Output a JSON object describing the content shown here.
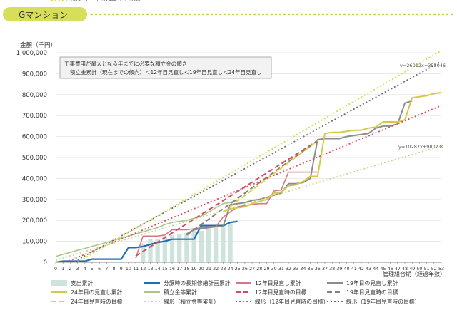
{
  "header": {
    "title": "Gマンション"
  },
  "chart_data": {
    "type": "line",
    "title": "Gマンション",
    "ylabel": "金額（千円）",
    "xlabel": "管理組合期（経過年数）",
    "ylim": [
      0,
      1000000
    ],
    "yticks": [
      0,
      100000,
      200000,
      300000,
      400000,
      500000,
      600000,
      700000,
      800000,
      900000,
      1000000
    ],
    "ytick_labels": [
      "0",
      "100,000",
      "200,000",
      "300,000",
      "400,000",
      "500,000",
      "600,000",
      "700,000",
      "800,000",
      "900,000",
      "1,000,000"
    ],
    "x": [
      0,
      1,
      2,
      3,
      4,
      5,
      6,
      7,
      8,
      9,
      10,
      11,
      12,
      13,
      14,
      15,
      16,
      17,
      18,
      19,
      20,
      21,
      22,
      23,
      24,
      25,
      26,
      27,
      28,
      29,
      30,
      31,
      32,
      33,
      34,
      35,
      36,
      37,
      38,
      39,
      40,
      41,
      42,
      43,
      44,
      45,
      46,
      47,
      48,
      49,
      50,
      51,
      52,
      53
    ],
    "xtick_labels": [
      "0",
      "1",
      "2",
      "3",
      "4",
      "5",
      "6",
      "7",
      "8",
      "9",
      "10",
      "11",
      "12",
      "13",
      "14",
      "15",
      "16",
      "17",
      "18",
      "19",
      "20",
      "21",
      "22",
      "23",
      "24",
      "25",
      "26",
      "27",
      "28",
      "29",
      "30",
      "31",
      "32",
      "33",
      "34",
      "35",
      "36",
      "37",
      "38",
      "39",
      "40",
      "41",
      "42",
      "43",
      "44",
      "45",
      "46",
      "47",
      "48",
      "49",
      "50",
      "51",
      "52",
      "53"
    ],
    "annotation_lines": [
      "工事費用が最大となる年までに必要な積立金の傾き",
      "積立金累計（現在までの傾向）＜12年目見直し＜19年目見直し＜24年目見直し"
    ],
    "equations": [
      {
        "text": "y=26012x+355046"
      },
      {
        "text": "y=10287x+9802.8"
      }
    ],
    "bars": {
      "name": "支出累計",
      "color": "#cde3dc",
      "x": [
        12,
        13,
        14,
        15,
        16,
        17,
        18,
        19,
        20,
        21,
        22,
        23,
        24
      ],
      "values": [
        90000,
        110000,
        110000,
        125000,
        130000,
        135000,
        140000,
        150000,
        150000,
        160000,
        170000,
        180000,
        185000
      ]
    },
    "series": [
      {
        "name": "分譲時の長期修繕計画累計",
        "color": "#1c6fb2",
        "dash": "none",
        "width": 2.2,
        "x": [
          0,
          1,
          2,
          3,
          4,
          5,
          6,
          7,
          8,
          9,
          10,
          11,
          12,
          13,
          14,
          15,
          16,
          17,
          18,
          19,
          20,
          21,
          22,
          23,
          24,
          25
        ],
        "values": [
          0,
          5000,
          5000,
          5000,
          5000,
          15000,
          15000,
          15000,
          15000,
          15000,
          70000,
          70000,
          75000,
          85000,
          95000,
          100000,
          110000,
          110000,
          110000,
          110000,
          175000,
          175000,
          175000,
          175000,
          190000,
          195000
        ]
      },
      {
        "name": "12年目見直し累計",
        "color": "#d17a85",
        "dash": "none",
        "width": 1.6,
        "x": [
          11,
          12,
          13,
          14,
          15,
          16,
          17,
          18,
          19,
          20,
          21,
          22,
          23,
          24,
          25,
          26,
          27,
          28,
          29,
          30,
          31,
          32,
          33,
          34,
          35,
          36
        ],
        "values": [
          20000,
          125000,
          125000,
          125000,
          130000,
          155000,
          155000,
          155000,
          160000,
          165000,
          170000,
          170000,
          215000,
          240000,
          265000,
          270000,
          275000,
          280000,
          280000,
          340000,
          345000,
          430000,
          430000,
          430000,
          430000,
          430000
        ]
      },
      {
        "name": "19年目の見直し累計",
        "color": "#8c8c8c",
        "dash": "none",
        "width": 2.0,
        "x": [
          18,
          19,
          20,
          21,
          22,
          23,
          24,
          25,
          26,
          27,
          28,
          29,
          30,
          31,
          32,
          33,
          34,
          35,
          36,
          37,
          38,
          39,
          40,
          41,
          42,
          43,
          44,
          45,
          46,
          47,
          48,
          49
        ],
        "values": [
          135000,
          155000,
          160000,
          165000,
          170000,
          170000,
          275000,
          280000,
          285000,
          295000,
          300000,
          310000,
          320000,
          330000,
          375000,
          375000,
          380000,
          400000,
          585000,
          590000,
          590000,
          590000,
          600000,
          605000,
          610000,
          615000,
          640000,
          650000,
          650000,
          660000,
          760000,
          770000
        ]
      },
      {
        "name": "24年目の見直し累計",
        "color": "#d4c84a",
        "dash": "none",
        "width": 2.0,
        "x": [
          23,
          24,
          25,
          26,
          27,
          28,
          29,
          30,
          31,
          32,
          33,
          34,
          35,
          36,
          37,
          38,
          39,
          40,
          41,
          42,
          43,
          44,
          45,
          46,
          47,
          48,
          49,
          50,
          51,
          52,
          53
        ],
        "values": [
          240000,
          255000,
          260000,
          265000,
          280000,
          290000,
          300000,
          330000,
          335000,
          365000,
          370000,
          385000,
          410000,
          410000,
          615000,
          620000,
          620000,
          625000,
          630000,
          630000,
          640000,
          645000,
          670000,
          670000,
          670000,
          680000,
          785000,
          790000,
          795000,
          805000,
          810000
        ]
      },
      {
        "name": "積立金等累計",
        "color": "#a9c78c",
        "dash": "none",
        "width": 1.6,
        "x": [
          0,
          1,
          2,
          3,
          4,
          5,
          6,
          7,
          8,
          9,
          10,
          11,
          12,
          13,
          14,
          15,
          16,
          17,
          18,
          19,
          20,
          21,
          22,
          23,
          24,
          25
        ],
        "values": [
          28000,
          38000,
          47000,
          57000,
          66000,
          76000,
          85000,
          95000,
          105000,
          115000,
          125000,
          135000,
          145000,
          155000,
          165000,
          180000,
          190000,
          195000,
          200000,
          210000,
          220000,
          240000,
          260000,
          280000,
          285000,
          295000
        ]
      },
      {
        "name": "12年目見直時の目標",
        "color": "#d94a5e",
        "dash": "7,4",
        "width": 2.0,
        "x": [
          11,
          36
        ],
        "values": [
          30000,
          580000
        ]
      },
      {
        "name": "19年目見直時の目標",
        "color": "#808080",
        "dash": "7,4",
        "width": 2.0,
        "x": [
          18,
          36
        ],
        "values": [
          130000,
          580000
        ]
      },
      {
        "name": "24年目見直時の目標",
        "color": "#e3d23a",
        "dash": "7,4",
        "width": 2.0,
        "x": [
          23,
          36
        ],
        "values": [
          240000,
          580000
        ]
      },
      {
        "name": "線形（積立金等累計）",
        "color": "#cdd490",
        "dash": "2,3",
        "width": 1.8,
        "x": [
          0,
          53
        ],
        "values": [
          9803,
          555000
        ]
      },
      {
        "name": "線形（12年目見直時の目標）",
        "color": "#d94a5e",
        "dash": "2,3",
        "width": 1.8,
        "x": [
          0,
          53
        ],
        "values": [
          -20000,
          748000
        ]
      },
      {
        "name": "線形（19年目見直時の目標）",
        "color": "#6e6e6e",
        "dash": "2,3",
        "width": 1.8,
        "x": [
          0,
          53
        ],
        "values": [
          -45000,
          958000
        ]
      },
      {
        "name": "線形（24年目見直時の目標）",
        "color": "#cfe04a",
        "dash": "2,3",
        "width": 1.8,
        "x": [
          0,
          53
        ],
        "values": [
          -60000,
          1010000
        ]
      }
    ],
    "legend": [
      {
        "label": "支出累計",
        "kind": "bar",
        "color": "#cde3dc"
      },
      {
        "label": "分譲時の長期修繕計画累計",
        "kind": "line",
        "color": "#1c6fb2",
        "dash": "none"
      },
      {
        "label": "12年目見直し累計",
        "kind": "line",
        "color": "#d17a85",
        "dash": "none"
      },
      {
        "label": "19年目の見直し累計",
        "kind": "line",
        "color": "#8c8c8c",
        "dash": "none"
      },
      {
        "label": "24年目の見直し累計",
        "kind": "line",
        "color": "#d4c84a",
        "dash": "none"
      },
      {
        "label": "積立金等累計",
        "kind": "line",
        "color": "#a9c78c",
        "dash": "none"
      },
      {
        "label": "12年目見直時の目標",
        "kind": "line",
        "color": "#d94a5e",
        "dash": "7,4"
      },
      {
        "label": "19年目見直時の目標",
        "kind": "line",
        "color": "#808080",
        "dash": "7,4"
      },
      {
        "label": "24年目見直時の目標",
        "kind": "line",
        "color": "#e3d23a",
        "dash": "7,4"
      },
      {
        "label": "線形（積立金等累計）",
        "kind": "line",
        "color": "#cdd490",
        "dash": "2,3"
      },
      {
        "label": "線形（12年目見直時の目標）",
        "kind": "line",
        "color": "#d94a5e",
        "dash": "2,3"
      },
      {
        "label": "線形（19年目見直時の目標）",
        "kind": "line",
        "color": "#6e6e6e",
        "dash": "2,3"
      },
      {
        "label": "線形（24年目見直時の目標）",
        "kind": "line",
        "color": "#cfe04a",
        "dash": "2,3"
      }
    ]
  },
  "colors": {
    "header_bg": "#d7df5a",
    "header_dots": "#c9d14a",
    "grid": "#e4e4e4",
    "annotation_bg": "#f2f2f2"
  }
}
